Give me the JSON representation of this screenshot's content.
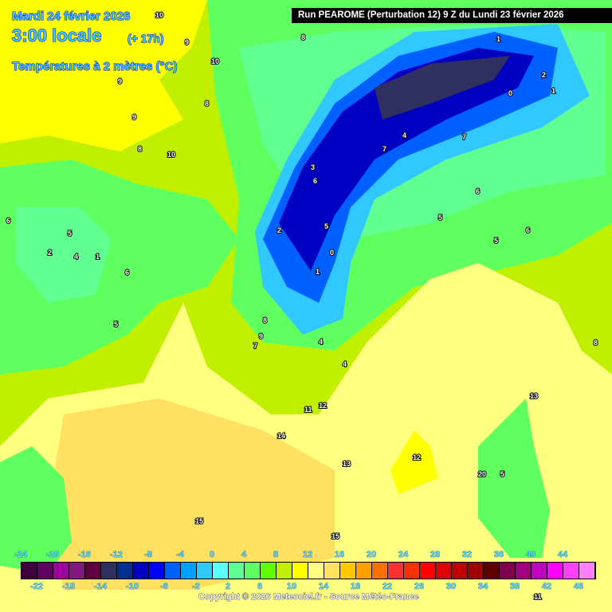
{
  "header": {
    "date": "Mardi 24 février 2026",
    "time": "3:00 locale",
    "lead": "(+ 17h)",
    "variable": "Températures à 2 mètres (°C)",
    "run": "Run PEAROME (Perturbation 12) 9 Z du Lundi 23 février 2026"
  },
  "legend": {
    "top_labels": [
      "-24",
      "-20",
      "-16",
      "-12",
      "-8",
      "-4",
      "0",
      "4",
      "8",
      "12",
      "16",
      "20",
      "24",
      "28",
      "32",
      "36",
      "40",
      "44"
    ],
    "bottom_labels": [
      "-22",
      "-18",
      "-14",
      "-10",
      "-6",
      "-2",
      "2",
      "6",
      "10",
      "14",
      "18",
      "22",
      "26",
      "30",
      "34",
      "38",
      "42",
      "46"
    ],
    "colors": [
      "#400040",
      "#600060",
      "#a000a0",
      "#801880",
      "#600040",
      "#303060",
      "#003090",
      "#0000c0",
      "#0000ff",
      "#0060ff",
      "#00a0ff",
      "#30c8ff",
      "#60ffff",
      "#60ff90",
      "#60ff60",
      "#60ff00",
      "#c0f000",
      "#ffff00",
      "#ffff80",
      "#ffe060",
      "#ffc800",
      "#ffa000",
      "#ff7000",
      "#ff3030",
      "#ff3000",
      "#ff0000",
      "#e00000",
      "#c00000",
      "#a00000",
      "#600000",
      "#800050",
      "#a00080",
      "#c000c0",
      "#ff00ff",
      "#ff40ff",
      "#ff80ff"
    ]
  },
  "map_labels": [
    "10",
    "9",
    "10",
    "9",
    "8",
    "9",
    "8",
    "10",
    "6",
    "5",
    "2",
    "4",
    "1",
    "6",
    "5",
    "8",
    "9",
    "7",
    "4",
    "1",
    "0",
    "2",
    "5",
    "3",
    "6",
    "4",
    "7",
    "6",
    "5",
    "5",
    "1",
    "2",
    "1",
    "0",
    "6",
    "11",
    "12",
    "14",
    "13",
    "12",
    "13",
    "20",
    "15",
    "15",
    "11",
    "8",
    "5",
    "7",
    "4",
    "8"
  ],
  "copyright": "Copyright © 2026 Meteociel.fr - Source Météo-France"
}
